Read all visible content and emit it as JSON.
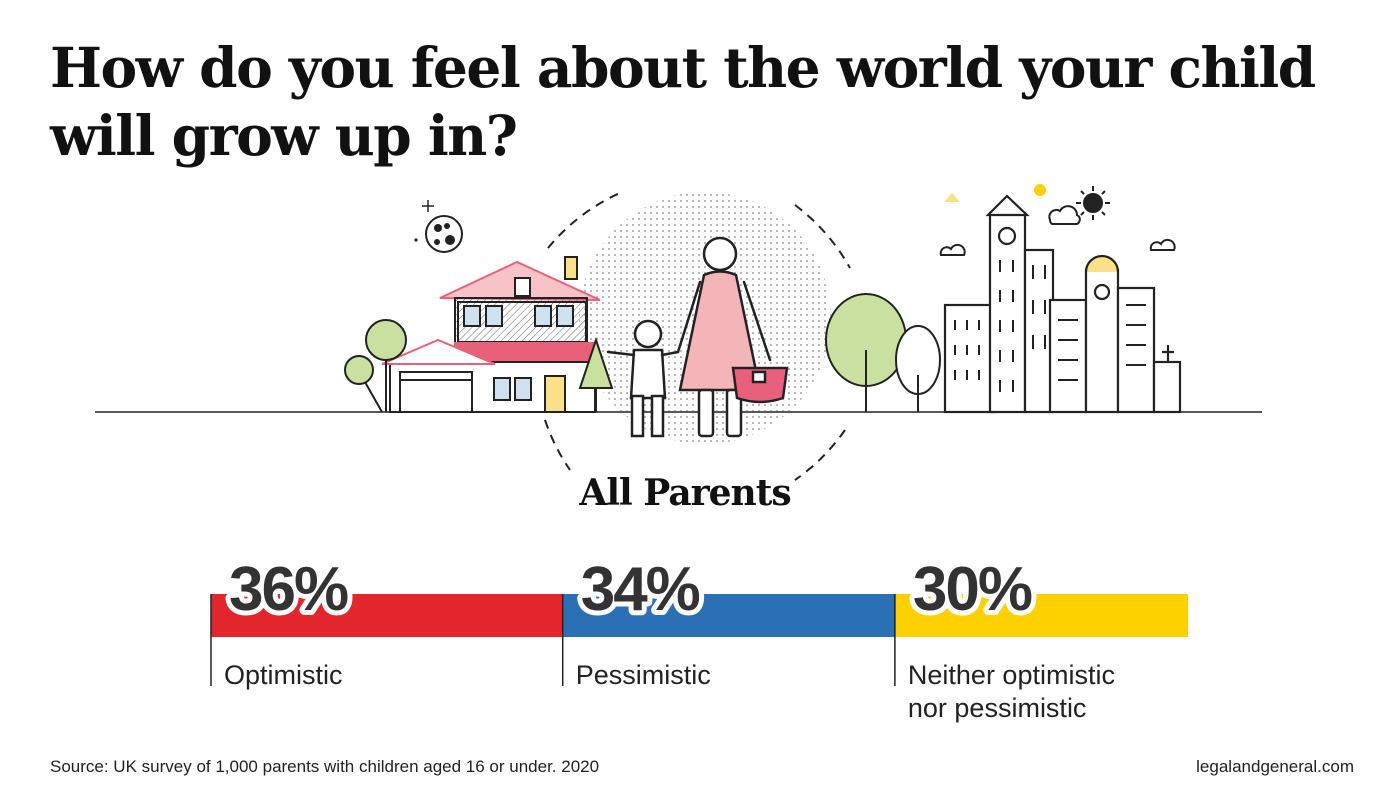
{
  "title_lines": [
    "How do you feel about the world your child",
    "will grow up in?"
  ],
  "group_label": "All Parents",
  "chart_data": {
    "type": "bar",
    "title": "How do you feel about the world your child will grow up in?",
    "layout": "stacked-horizontal",
    "group": "All Parents",
    "unit": "%",
    "categories": [
      "Optimistic",
      "Pessimistic",
      "Neither optimistic nor pessimistic"
    ],
    "category_lines": [
      [
        "Optimistic"
      ],
      [
        "Pessimistic"
      ],
      [
        "Neither optimistic",
        "nor pessimistic"
      ]
    ],
    "values": [
      36,
      34,
      30
    ],
    "value_labels": [
      "36%",
      "34%",
      "30%"
    ],
    "colors": [
      "#e3262b",
      "#2b6fb5",
      "#fdd000"
    ],
    "total": 100
  },
  "footer": {
    "source": "Source: UK survey of 1,000 parents with children aged 16 or under. 2020",
    "site": "legalandgeneral.com"
  },
  "colors": {
    "red": "#e3262b",
    "blue": "#2b6fb5",
    "yellow": "#fdd000",
    "pink": "#f4b5b8",
    "rose": "#e9607a",
    "leaf": "#c9e0a0",
    "ink": "#222222"
  }
}
